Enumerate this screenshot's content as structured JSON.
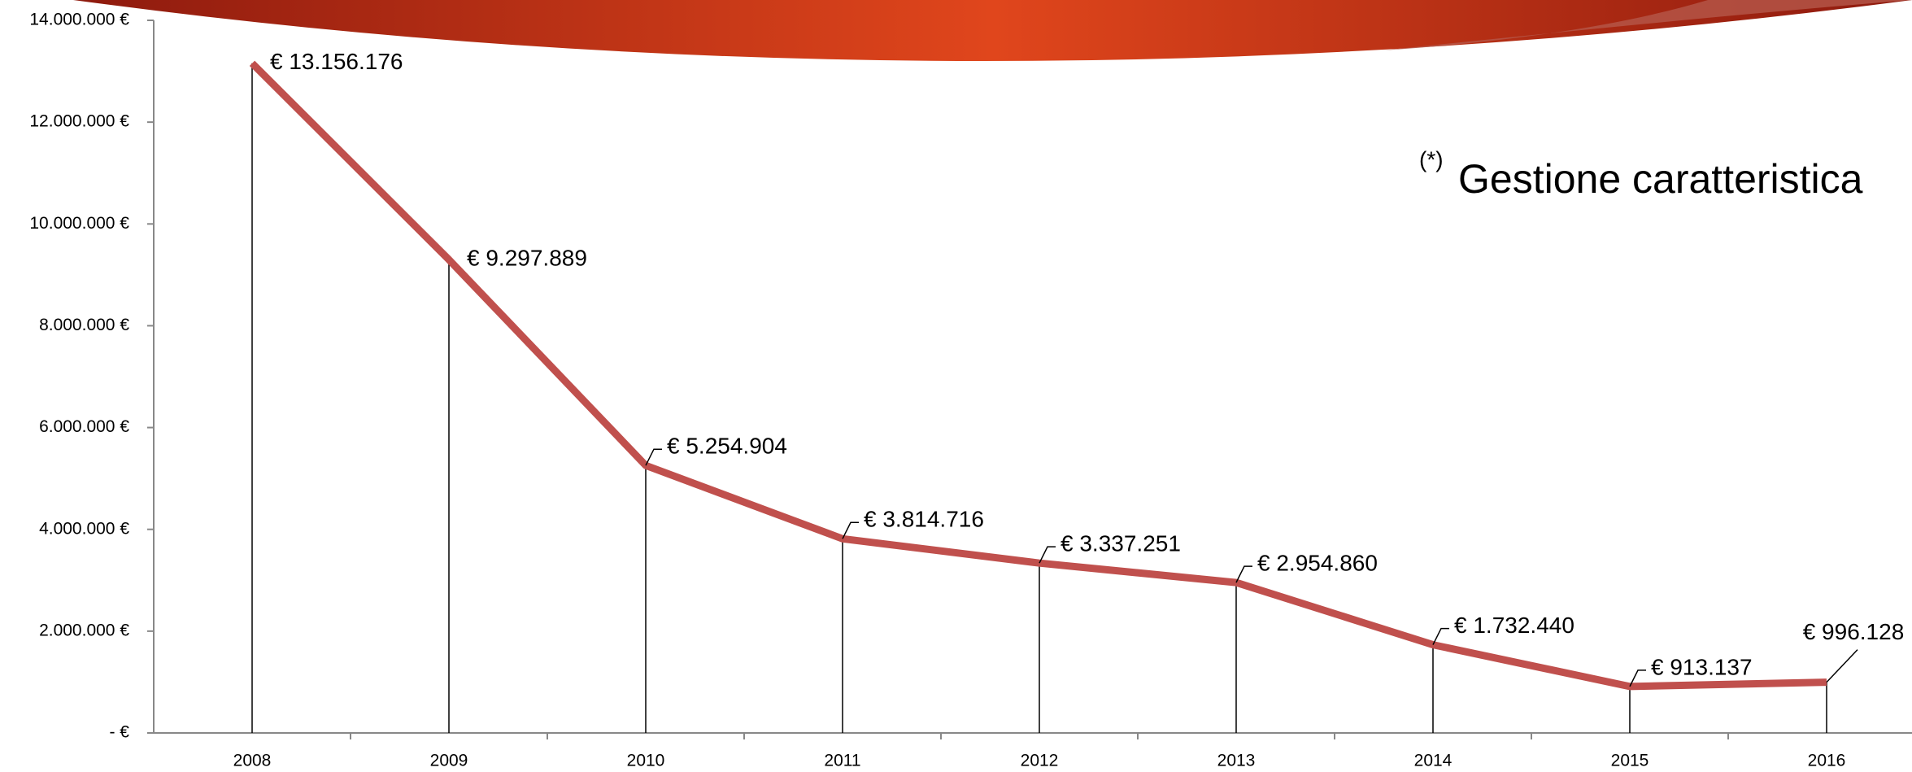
{
  "chart_data": {
    "type": "line",
    "annotation": "Gestione caratteristica",
    "annotation_marker": "(*)",
    "categories": [
      "2008",
      "2009",
      "2010",
      "2011",
      "2012",
      "2013",
      "2014",
      "2015",
      "2016"
    ],
    "values": [
      13156176,
      9297889,
      5254904,
      3814716,
      3337251,
      2954860,
      1732440,
      913137,
      996128
    ],
    "value_labels": [
      "€ 13.156.176",
      "€ 9.297.889",
      "€ 5.254.904",
      "€ 3.814.716",
      "€ 3.337.251",
      "€ 2.954.860",
      "€ 1.732.440",
      "€ 913.137",
      "€ 996.128"
    ],
    "color": "#c0504d",
    "ylim": [
      0,
      14000000
    ],
    "yticks": [
      {
        "value": 0,
        "label": "-  €"
      },
      {
        "value": 2000000,
        "label": "2.000.000 €"
      },
      {
        "value": 4000000,
        "label": "4.000.000 €"
      },
      {
        "value": 6000000,
        "label": "6.000.000 €"
      },
      {
        "value": 8000000,
        "label": "8.000.000 €"
      },
      {
        "value": 10000000,
        "label": "10.000.000 €"
      },
      {
        "value": 12000000,
        "label": "12.000.000 €"
      },
      {
        "value": 14000000,
        "label": "14.000.000 €"
      }
    ],
    "drop_lines": true
  }
}
